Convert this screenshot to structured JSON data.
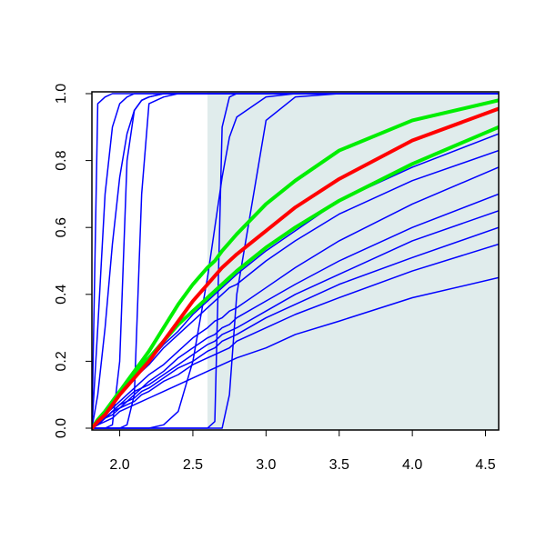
{
  "chart_data": {
    "type": "line",
    "x": [
      1.81,
      1.85,
      1.9,
      1.95,
      2.0,
      2.05,
      2.1,
      2.15,
      2.2,
      2.3,
      2.4,
      2.5,
      2.6,
      2.65,
      2.7,
      2.75,
      2.8,
      3.0,
      3.2,
      3.5,
      4.0,
      4.59
    ],
    "xlim": [
      1.81,
      4.59
    ],
    "ylim": [
      0,
      1
    ],
    "xticks": [
      {
        "value": 2.0,
        "label": "2.0"
      },
      {
        "value": 2.5,
        "label": "2.5"
      },
      {
        "value": 3.0,
        "label": "3.0"
      },
      {
        "value": 3.5,
        "label": "3.5"
      },
      {
        "value": 4.0,
        "label": "4.0"
      },
      {
        "value": 4.5,
        "label": "4.5"
      }
    ],
    "yticks": [
      {
        "value": 0,
        "label": "0.0"
      },
      0.2,
      0.4,
      0.6,
      0.8,
      {
        "value": 1,
        "label": "1.0"
      }
    ],
    "shaded_xmin": 2.6,
    "shade_color": "#e0ecec",
    "series": [
      {
        "color": "#0000ff",
        "width": 1.5,
        "values": [
          0,
          0.97,
          0.99,
          1,
          1,
          1,
          1,
          1,
          1,
          1,
          1,
          1,
          1,
          1,
          1,
          1,
          1,
          1,
          1,
          1,
          1,
          1
        ]
      },
      {
        "color": "#0000ff",
        "width": 1.5,
        "values": [
          0,
          0.3,
          0.7,
          0.9,
          0.97,
          0.99,
          1,
          1,
          1,
          1,
          1,
          1,
          1,
          1,
          1,
          1,
          1,
          1,
          1,
          1,
          1,
          1
        ]
      },
      {
        "color": "#0000ff",
        "width": 1.5,
        "values": [
          0,
          0.1,
          0.3,
          0.55,
          0.75,
          0.88,
          0.95,
          0.98,
          0.99,
          1,
          1,
          1,
          1,
          1,
          1,
          1,
          1,
          1,
          1,
          1,
          1,
          1
        ]
      },
      {
        "color": "#0000ff",
        "width": 1.5,
        "values": [
          0,
          0,
          0,
          0.01,
          0.2,
          0.8,
          0.95,
          0.98,
          0.99,
          1,
          1,
          1,
          1,
          1,
          1,
          1,
          1,
          1,
          1,
          1,
          1,
          1
        ]
      },
      {
        "color": "#0000ff",
        "width": 1.5,
        "values": [
          0,
          0,
          0,
          0,
          0,
          0.01,
          0.1,
          0.7,
          0.97,
          0.99,
          1,
          1,
          1,
          1,
          1,
          1,
          1,
          1,
          1,
          1,
          1,
          1
        ]
      },
      {
        "color": "#0000ff",
        "width": 1.5,
        "values": [
          0,
          0,
          0,
          0,
          0,
          0,
          0,
          0,
          0,
          0.01,
          0.05,
          0.2,
          0.45,
          0.6,
          0.75,
          0.87,
          0.93,
          0.99,
          1,
          1,
          1,
          1
        ]
      },
      {
        "color": "#0000ff",
        "width": 1.5,
        "values": [
          0,
          0,
          0,
          0,
          0,
          0,
          0,
          0,
          0,
          0,
          0,
          0,
          0,
          0.02,
          0.9,
          0.99,
          1,
          1,
          1,
          1,
          1,
          1
        ]
      },
      {
        "color": "#0000ff",
        "width": 1.5,
        "values": [
          0,
          0,
          0,
          0,
          0,
          0,
          0,
          0,
          0,
          0,
          0,
          0,
          0,
          0,
          0,
          0.1,
          0.4,
          0.92,
          0.99,
          1,
          1,
          1
        ]
      },
      {
        "color": "#0000ff",
        "width": 1.5,
        "values": [
          0,
          0.01,
          0.02,
          0.03,
          0.05,
          0.06,
          0.07,
          0.08,
          0.09,
          0.11,
          0.13,
          0.15,
          0.17,
          0.18,
          0.19,
          0.2,
          0.21,
          0.24,
          0.28,
          0.32,
          0.39,
          0.45
        ]
      },
      {
        "color": "#0000ff",
        "width": 1.5,
        "values": [
          0,
          0.01,
          0.03,
          0.04,
          0.06,
          0.07,
          0.08,
          0.1,
          0.11,
          0.14,
          0.16,
          0.19,
          0.21,
          0.22,
          0.23,
          0.24,
          0.26,
          0.3,
          0.34,
          0.39,
          0.47,
          0.55
        ]
      },
      {
        "color": "#0000ff",
        "width": 1.5,
        "values": [
          0,
          0.01,
          0.03,
          0.05,
          0.06,
          0.08,
          0.09,
          0.11,
          0.12,
          0.15,
          0.18,
          0.2,
          0.23,
          0.24,
          0.26,
          0.27,
          0.28,
          0.33,
          0.37,
          0.43,
          0.51,
          0.6
        ]
      },
      {
        "color": "#0000ff",
        "width": 1.5,
        "values": [
          0,
          0.01,
          0.03,
          0.05,
          0.07,
          0.08,
          0.1,
          0.12,
          0.13,
          0.16,
          0.19,
          0.22,
          0.25,
          0.26,
          0.28,
          0.29,
          0.3,
          0.35,
          0.4,
          0.46,
          0.56,
          0.65
        ]
      },
      {
        "color": "#0000ff",
        "width": 1.5,
        "values": [
          0,
          0.02,
          0.03,
          0.05,
          0.07,
          0.09,
          0.11,
          0.12,
          0.14,
          0.17,
          0.21,
          0.24,
          0.27,
          0.28,
          0.3,
          0.31,
          0.33,
          0.38,
          0.43,
          0.5,
          0.6,
          0.7
        ]
      },
      {
        "color": "#0000ff",
        "width": 1.5,
        "values": [
          0,
          0.02,
          0.04,
          0.06,
          0.08,
          0.1,
          0.12,
          0.14,
          0.16,
          0.19,
          0.23,
          0.27,
          0.3,
          0.32,
          0.33,
          0.35,
          0.36,
          0.42,
          0.48,
          0.56,
          0.67,
          0.78
        ]
      },
      {
        "color": "#0000ff",
        "width": 1.5,
        "values": [
          0,
          0.02,
          0.05,
          0.07,
          0.1,
          0.12,
          0.15,
          0.17,
          0.19,
          0.24,
          0.28,
          0.32,
          0.36,
          0.38,
          0.4,
          0.42,
          0.43,
          0.5,
          0.56,
          0.64,
          0.74,
          0.83
        ]
      },
      {
        "color": "#0000ff",
        "width": 1.5,
        "values": [
          0,
          0.02,
          0.05,
          0.08,
          0.1,
          0.13,
          0.15,
          0.18,
          0.2,
          0.25,
          0.29,
          0.34,
          0.38,
          0.4,
          0.42,
          0.44,
          0.46,
          0.53,
          0.59,
          0.68,
          0.78,
          0.88
        ]
      },
      {
        "color": "#00ee00",
        "width": 4,
        "values": [
          0,
          0.025,
          0.05,
          0.08,
          0.11,
          0.14,
          0.17,
          0.2,
          0.23,
          0.3,
          0.37,
          0.43,
          0.48,
          0.5,
          0.53,
          0.555,
          0.58,
          0.67,
          0.74,
          0.83,
          0.92,
          0.98
        ]
      },
      {
        "color": "#00ee00",
        "width": 4,
        "values": [
          0,
          0.025,
          0.05,
          0.08,
          0.11,
          0.135,
          0.16,
          0.19,
          0.21,
          0.26,
          0.31,
          0.35,
          0.39,
          0.41,
          0.43,
          0.45,
          0.47,
          0.54,
          0.6,
          0.68,
          0.79,
          0.9
        ]
      },
      {
        "color": "#ff0000",
        "width": 4,
        "values": [
          0,
          0.02,
          0.04,
          0.07,
          0.1,
          0.125,
          0.15,
          0.175,
          0.2,
          0.26,
          0.32,
          0.38,
          0.43,
          0.455,
          0.48,
          0.5,
          0.52,
          0.59,
          0.66,
          0.745,
          0.86,
          0.955
        ]
      }
    ]
  }
}
